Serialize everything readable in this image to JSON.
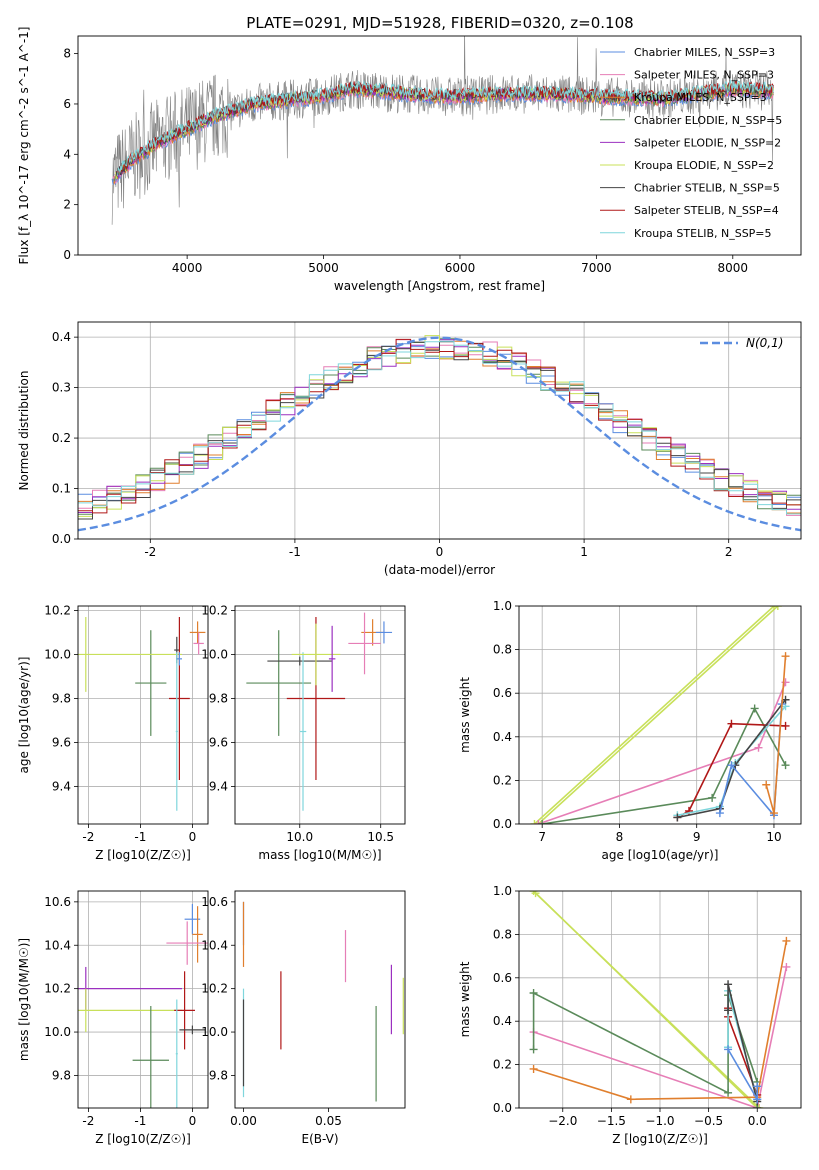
{
  "figure_title": "PLATE=0291, MJD=51928, FIBERID=0320, z=0.108",
  "chart_data": [
    {
      "id": "spectrum",
      "type": "line",
      "title": "PLATE=0291, MJD=51928, FIBERID=0320, z=0.108",
      "xlabel": "wavelength [Angstrom, rest frame]",
      "ylabel": "Flux [f_λ 10^-17 erg cm^-2 s^-1 A^-1]",
      "xlim": [
        3200,
        8500
      ],
      "ylim": [
        0,
        8.7
      ],
      "xticks": [
        4000,
        5000,
        6000,
        7000,
        8000
      ],
      "yticks": [
        0,
        2,
        4,
        6,
        8
      ],
      "grid": false,
      "legend_position": "top-right",
      "continuum_x": [
        3450,
        3600,
        3800,
        4000,
        4200,
        4500,
        4800,
        5000,
        5200,
        5500,
        5800,
        6000,
        6300,
        6600,
        7000,
        7500,
        8000,
        8300
      ],
      "continuum_y": [
        3.0,
        3.8,
        4.5,
        5.0,
        5.5,
        6.0,
        6.2,
        6.3,
        6.6,
        6.45,
        6.3,
        6.3,
        6.4,
        6.4,
        6.3,
        6.2,
        6.6,
        6.5
      ],
      "series": [
        {
          "name": "Chabrier MILES, N_SSP=3",
          "color": "#5b8de0"
        },
        {
          "name": "Salpeter MILES, N_SSP=3",
          "color": "#e67eb6"
        },
        {
          "name": "Kroupa MILES, N_SSP=3",
          "color": "#e07f2e"
        },
        {
          "name": "Chabrier ELODIE, N_SSP=5",
          "color": "#5a8a5a"
        },
        {
          "name": "Salpeter ELODIE, N_SSP=2",
          "color": "#9b30c0"
        },
        {
          "name": "Kroupa ELODIE, N_SSP=2",
          "color": "#c8e05a"
        },
        {
          "name": "Chabrier STELIB, N_SSP=5",
          "color": "#444444"
        },
        {
          "name": "Salpeter STELIB, N_SSP=4",
          "color": "#b01818"
        },
        {
          "name": "Kroupa STELIB, N_SSP=5",
          "color": "#7fd6dc"
        }
      ],
      "data_color": "#808080"
    },
    {
      "id": "residuals",
      "type": "line",
      "xlabel": "(data-model)/error",
      "ylabel": "Normed distribution",
      "xlim": [
        -2.5,
        2.5
      ],
      "ylim": [
        0,
        0.43
      ],
      "xticks": [
        -2,
        -1,
        0,
        1,
        2
      ],
      "yticks": [
        0.0,
        0.1,
        0.2,
        0.3,
        0.4
      ],
      "grid": true,
      "legend_position": "top-right",
      "legend": "N(0,1)",
      "gaussian_color": "#5b8de0"
    },
    {
      "id": "age-vs-z",
      "type": "scatter",
      "xlabel": "Z [log10(Z/Z☉)]",
      "ylabel": "age  [log10(age/yr)]",
      "xlim": [
        -2.2,
        0.3
      ],
      "ylim": [
        9.23,
        10.22
      ],
      "xticks": [
        -2,
        -1,
        0
      ],
      "yticks": [
        9.4,
        9.6,
        9.8,
        10.0,
        10.2
      ],
      "grid": true,
      "points": [
        {
          "x": 0.1,
          "y": 10.1,
          "xerr": 0.15,
          "yerr": 0.05,
          "color": "#e07f2e"
        },
        {
          "x": 0.12,
          "y": 10.05,
          "xerr": 0.1,
          "yerr": 0.05,
          "color": "#e67eb6"
        },
        {
          "x": -0.3,
          "y": 10.02,
          "xerr": 0.05,
          "yerr": 0.06,
          "color": "#444444"
        },
        {
          "x": -0.8,
          "y": 9.87,
          "xerr": 0.3,
          "yerr": 0.24,
          "color": "#5a8a5a"
        },
        {
          "x": -2.05,
          "y": 10.0,
          "xerr": 1.85,
          "yerr": 0.17,
          "color": "#c8e05a"
        },
        {
          "x": -0.25,
          "y": 9.8,
          "xerr": 0.2,
          "yerr": 0.37,
          "color": "#b01818"
        },
        {
          "x": -0.3,
          "y": 9.65,
          "xerr": 0.02,
          "yerr": 0.36,
          "color": "#7fd6dc"
        },
        {
          "x": -0.25,
          "y": 9.98,
          "xerr": 0.05,
          "yerr": 0.03,
          "color": "#5b8de0"
        }
      ]
    },
    {
      "id": "age-vs-mass",
      "type": "scatter",
      "xlabel": "mass [log10(M/M☉)]",
      "ylabel": "",
      "xlim": [
        9.6,
        10.65
      ],
      "ylim": [
        9.23,
        10.22
      ],
      "xticks": [
        10.0,
        10.5
      ],
      "yticks": [
        9.4,
        9.6,
        9.8,
        10.0,
        10.2
      ],
      "grid": true,
      "points": [
        {
          "x": 10.45,
          "y": 10.1,
          "xerr": 0.07,
          "yerr": 0.06,
          "color": "#e07f2e"
        },
        {
          "x": 10.4,
          "y": 10.05,
          "xerr": 0.1,
          "yerr": 0.14,
          "color": "#e67eb6"
        },
        {
          "x": 10.52,
          "y": 10.1,
          "xerr": 0.05,
          "yerr": 0.05,
          "color": "#5b8de0"
        },
        {
          "x": 9.87,
          "y": 9.87,
          "xerr": 0.2,
          "yerr": 0.24,
          "color": "#5a8a5a"
        },
        {
          "x": 10.0,
          "y": 9.97,
          "xerr": 0.2,
          "yerr": 0.02,
          "color": "#444444"
        },
        {
          "x": 10.1,
          "y": 9.8,
          "xerr": 0.18,
          "yerr": 0.37,
          "color": "#b01818"
        },
        {
          "x": 10.02,
          "y": 9.65,
          "xerr": 0.02,
          "yerr": 0.36,
          "color": "#7fd6dc"
        },
        {
          "x": 10.1,
          "y": 10.0,
          "xerr": 0.15,
          "yerr": 0.14,
          "color": "#c8e05a"
        },
        {
          "x": 10.2,
          "y": 9.98,
          "xerr": 0.02,
          "yerr": 0.15,
          "color": "#9b30c0"
        }
      ]
    },
    {
      "id": "weight-vs-age",
      "type": "line",
      "xlabel": "age  [log10(age/yr)]",
      "ylabel": "mass weight",
      "xlim": [
        6.7,
        10.35
      ],
      "ylim": [
        0,
        1
      ],
      "xticks": [
        7,
        8,
        9,
        10
      ],
      "yticks": [
        0.0,
        0.2,
        0.4,
        0.6,
        0.8,
        1.0
      ],
      "grid": true,
      "series": [
        {
          "color": "#c8e05a",
          "x": [
            6.9,
            10.0
          ],
          "y": [
            0.0,
            1.0
          ]
        },
        {
          "color": "#c8e05a",
          "x": [
            6.95,
            10.05
          ],
          "y": [
            0.0,
            1.0
          ]
        },
        {
          "color": "#e67eb6",
          "x": [
            6.95,
            9.8,
            10.15
          ],
          "y": [
            0.0,
            0.35,
            0.65
          ]
        },
        {
          "color": "#5a8a5a",
          "x": [
            7.0,
            9.2,
            9.75,
            10.15
          ],
          "y": [
            0.0,
            0.12,
            0.53,
            0.27
          ]
        },
        {
          "color": "#b01818",
          "x": [
            8.75,
            8.9,
            9.45,
            10.15
          ],
          "y": [
            0.03,
            0.06,
            0.46,
            0.45
          ]
        },
        {
          "color": "#7fd6dc",
          "x": [
            8.75,
            9.3,
            9.5,
            10.15
          ],
          "y": [
            0.04,
            0.08,
            0.28,
            0.54
          ]
        },
        {
          "color": "#444444",
          "x": [
            8.75,
            9.3,
            9.5,
            10.15
          ],
          "y": [
            0.03,
            0.07,
            0.27,
            0.57
          ]
        },
        {
          "color": "#5b8de0",
          "x": [
            9.3,
            9.45,
            10.0,
            10.1
          ],
          "y": [
            0.05,
            0.27,
            0.04,
            0.55
          ]
        },
        {
          "color": "#e07f2e",
          "x": [
            9.9,
            10.0,
            10.15
          ],
          "y": [
            0.18,
            0.05,
            0.77
          ]
        }
      ]
    },
    {
      "id": "mass-vs-z",
      "type": "scatter",
      "xlabel": "Z [log10(Z/Z☉)]",
      "ylabel": "mass [log10(M/M☉)]",
      "xlim": [
        -2.2,
        0.3
      ],
      "ylim": [
        9.65,
        10.65
      ],
      "xticks": [
        -2,
        -1,
        0
      ],
      "yticks": [
        9.8,
        10.0,
        10.2,
        10.4,
        10.6
      ],
      "grid": true,
      "points": [
        {
          "x": 0.0,
          "y": 10.52,
          "xerr": 0.15,
          "yerr": 0.07,
          "color": "#5b8de0"
        },
        {
          "x": 0.1,
          "y": 10.45,
          "xerr": 0.1,
          "yerr": 0.13,
          "color": "#e07f2e"
        },
        {
          "x": -0.1,
          "y": 10.41,
          "xerr": 0.4,
          "yerr": 0.1,
          "color": "#e67eb6"
        },
        {
          "x": -2.05,
          "y": 10.2,
          "xerr": 1.85,
          "yerr": 0.1,
          "color": "#9b30c0"
        },
        {
          "x": -2.05,
          "y": 10.1,
          "xerr": 1.85,
          "yerr": 0.1,
          "color": "#c8e05a"
        },
        {
          "x": -0.15,
          "y": 10.1,
          "xerr": 0.2,
          "yerr": 0.18,
          "color": "#b01818"
        },
        {
          "x": 0.0,
          "y": 10.01,
          "xerr": 0.25,
          "yerr": 0.02,
          "color": "#444444"
        },
        {
          "x": -0.8,
          "y": 9.87,
          "xerr": 0.35,
          "yerr": 0.25,
          "color": "#5a8a5a"
        },
        {
          "x": -0.3,
          "y": 9.9,
          "xerr": 0.02,
          "yerr": 0.25,
          "color": "#7fd6dc"
        }
      ]
    },
    {
      "id": "mass-vs-ebv",
      "type": "scatter",
      "xlabel": "E(B-V)",
      "ylabel": "",
      "xlim": [
        -0.005,
        0.095
      ],
      "ylim": [
        9.65,
        10.65
      ],
      "xticks": [
        0.0,
        0.05
      ],
      "yticks": [
        9.8,
        10.0,
        10.2,
        10.4,
        10.6
      ],
      "grid": false,
      "points": [
        {
          "x": 0.0,
          "y": 10.5,
          "yerr": 0.1,
          "color": "#5b8de0"
        },
        {
          "x": 0.0,
          "y": 10.45,
          "yerr": 0.15,
          "color": "#e07f2e"
        },
        {
          "x": 0.0,
          "y": 9.95,
          "yerr": 0.25,
          "color": "#7fd6dc"
        },
        {
          "x": 0.0,
          "y": 9.95,
          "yerr": 0.2,
          "color": "#444444"
        },
        {
          "x": 0.022,
          "y": 10.1,
          "yerr": 0.18,
          "color": "#b01818"
        },
        {
          "x": 0.06,
          "y": 10.35,
          "yerr": 0.12,
          "color": "#e67eb6"
        },
        {
          "x": 0.078,
          "y": 9.9,
          "yerr": 0.22,
          "color": "#5a8a5a"
        },
        {
          "x": 0.087,
          "y": 10.15,
          "yerr": 0.16,
          "color": "#9b30c0"
        },
        {
          "x": 0.094,
          "y": 10.12,
          "yerr": 0.13,
          "color": "#c8e05a"
        }
      ]
    },
    {
      "id": "weight-vs-z",
      "type": "line",
      "xlabel": "Z [log10(Z/Z☉)]",
      "ylabel": "mass weight",
      "xlim": [
        -2.45,
        0.45
      ],
      "ylim": [
        0,
        1
      ],
      "xticks": [
        -2.0,
        -1.5,
        -1.0,
        -0.5,
        0.0
      ],
      "yticks": [
        0.0,
        0.2,
        0.4,
        0.6,
        0.8,
        1.0
      ],
      "grid": true,
      "series": [
        {
          "color": "#c8e05a",
          "x": [
            -2.3,
            0.0
          ],
          "y": [
            1.0,
            0.0
          ]
        },
        {
          "color": "#c8e05a",
          "x": [
            -2.28,
            0.02
          ],
          "y": [
            0.99,
            0.0
          ]
        },
        {
          "color": "#e67eb6",
          "x": [
            -2.3,
            0.0,
            0.3
          ],
          "y": [
            0.35,
            0.0,
            0.65
          ]
        },
        {
          "color": "#5a8a5a",
          "x": [
            -2.3,
            -2.3,
            -0.3,
            -0.3,
            0.0,
            0.0
          ],
          "y": [
            0.27,
            0.53,
            0.07,
            0.52,
            0.12,
            0.0
          ]
        },
        {
          "color": "#e07f2e",
          "x": [
            -2.3,
            -1.3,
            0.0,
            0.3
          ],
          "y": [
            0.18,
            0.04,
            0.05,
            0.77
          ]
        },
        {
          "color": "#b01818",
          "x": [
            -0.3,
            -0.3,
            0.0
          ],
          "y": [
            0.46,
            0.42,
            0.06
          ]
        },
        {
          "color": "#7fd6dc",
          "x": [
            -0.3,
            -0.3,
            0.0
          ],
          "y": [
            0.28,
            0.54,
            0.04
          ]
        },
        {
          "color": "#444444",
          "x": [
            -0.3,
            -0.3,
            0.0
          ],
          "y": [
            0.45,
            0.57,
            0.03
          ]
        },
        {
          "color": "#5b8de0",
          "x": [
            -0.3,
            0.0,
            0.0
          ],
          "y": [
            0.27,
            0.04,
            0.1
          ]
        }
      ]
    }
  ]
}
